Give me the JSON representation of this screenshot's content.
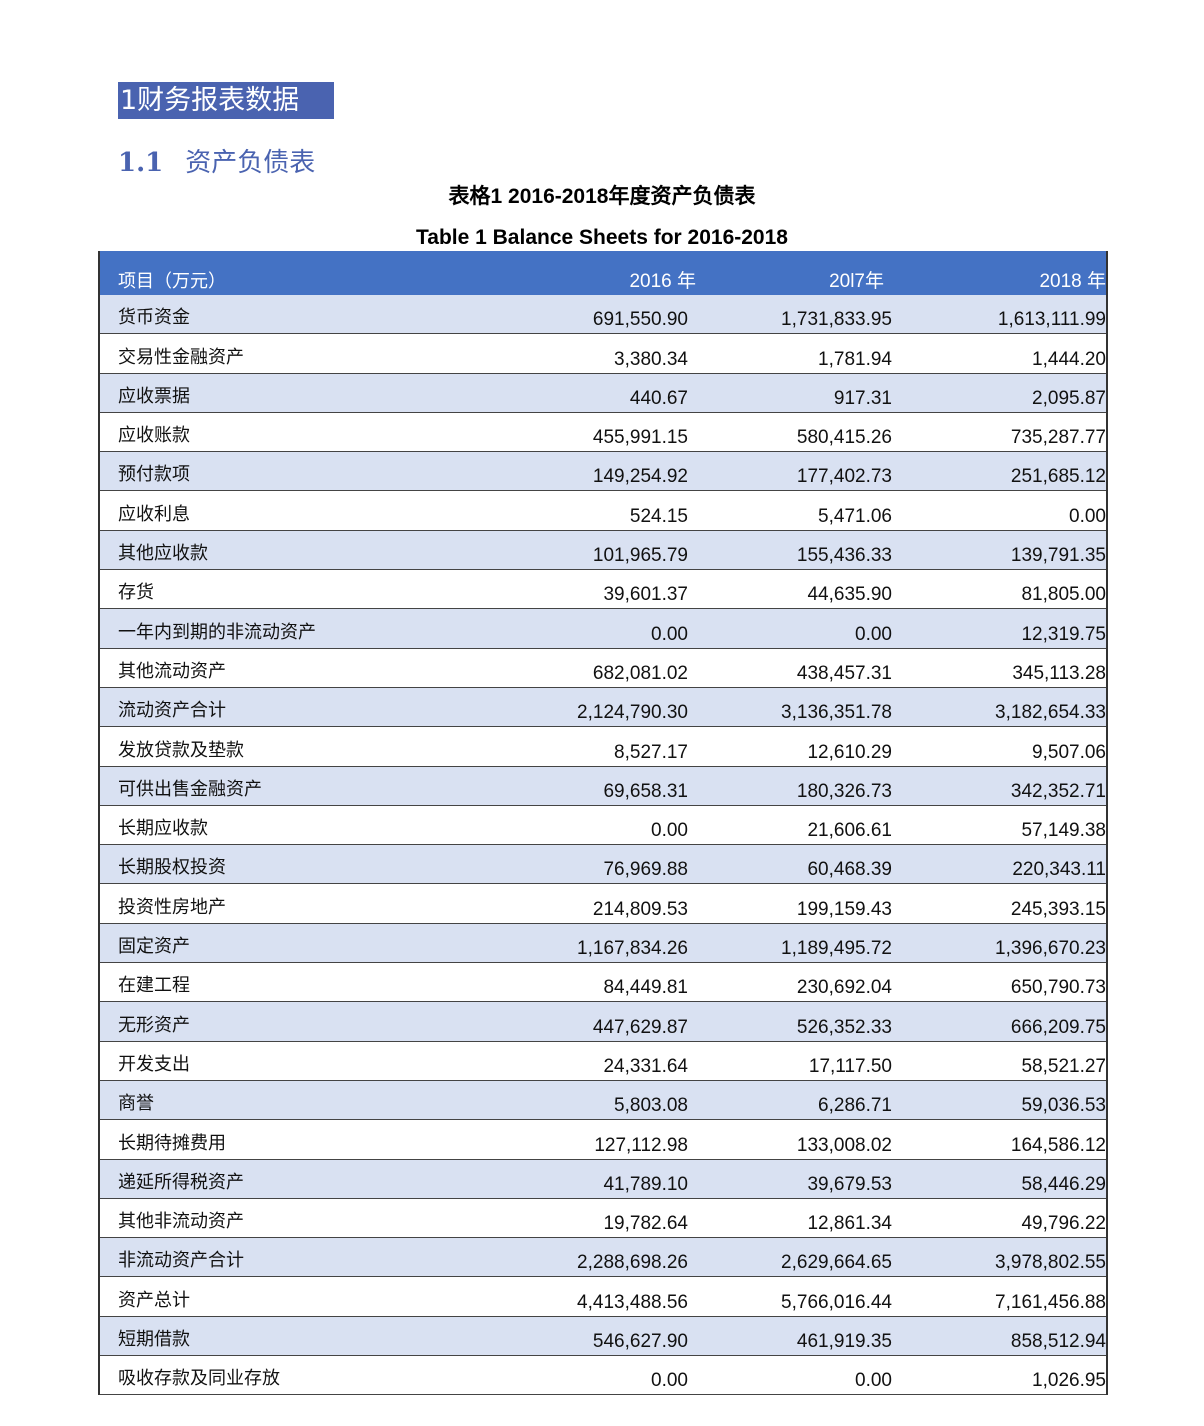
{
  "heading1": "1财务报表数据",
  "heading2": {
    "number": "1.1",
    "title": "资产负债表"
  },
  "caption_cn": "表格1 2016-2018年度资产负债表",
  "caption_en": "Table 1 Balance Sheets for 2016-2018",
  "colors": {
    "heading_bg": "#4a63b0",
    "header_bg": "#4472c4",
    "alt_row": "#d9e1f2"
  },
  "table": {
    "headers": [
      "项目（万元）",
      "2016 年",
      "20l7年",
      "2018 年"
    ],
    "rows": [
      [
        "货币资金",
        "691,550.90",
        "1,731,833.95",
        "1,613,111.99"
      ],
      [
        "交易性金融资产",
        "3,380.34",
        "1,781.94",
        "1,444.20"
      ],
      [
        "应收票据",
        "440.67",
        "917.31",
        "2,095.87"
      ],
      [
        "应收账款",
        "455,991.15",
        "580,415.26",
        "735,287.77"
      ],
      [
        "预付款项",
        "149,254.92",
        "177,402.73",
        "251,685.12"
      ],
      [
        "应收利息",
        "524.15",
        "5,471.06",
        "0.00"
      ],
      [
        "其他应收款",
        "101,965.79",
        "155,436.33",
        "139,791.35"
      ],
      [
        "存货",
        "39,601.37",
        "44,635.90",
        "81,805.00"
      ],
      [
        "一年内到期的非流动资产",
        "0.00",
        "0.00",
        "12,319.75"
      ],
      [
        "其他流动资产",
        "682,081.02",
        "438,457.31",
        "345,113.28"
      ],
      [
        "流动资产合计",
        "2,124,790.30",
        "3,136,351.78",
        "3,182,654.33"
      ],
      [
        "发放贷款及垫款",
        "8,527.17",
        "12,610.29",
        "9,507.06"
      ],
      [
        "可供出售金融资产",
        "69,658.31",
        "180,326.73",
        "342,352.71"
      ],
      [
        "长期应收款",
        "0.00",
        "21,606.61",
        "57,149.38"
      ],
      [
        "长期股权投资",
        "76,969.88",
        "60,468.39",
        "220,343.11"
      ],
      [
        "投资性房地产",
        "214,809.53",
        "199,159.43",
        "245,393.15"
      ],
      [
        "固定资产",
        "1,167,834.26",
        "1,189,495.72",
        "1,396,670.23"
      ],
      [
        "在建工程",
        "84,449.81",
        "230,692.04",
        "650,790.73"
      ],
      [
        "无形资产",
        "447,629.87",
        "526,352.33",
        "666,209.75"
      ],
      [
        "开发支出",
        "24,331.64",
        "17,117.50",
        "58,521.27"
      ],
      [
        "商誉",
        "5,803.08",
        "6,286.71",
        "59,036.53"
      ],
      [
        "长期待摊费用",
        "127,112.98",
        "133,008.02",
        "164,586.12"
      ],
      [
        "递延所得税资产",
        "41,789.10",
        "39,679.53",
        "58,446.29"
      ],
      [
        "其他非流动资产",
        "19,782.64",
        "12,861.34",
        "49,796.22"
      ],
      [
        "非流动资产合计",
        "2,288,698.26",
        "2,629,664.65",
        "3,978,802.55"
      ],
      [
        "资产总计",
        "4,413,488.56",
        "5,766,016.44",
        "7,161,456.88"
      ],
      [
        "短期借款",
        "546,627.90",
        "461,919.35",
        "858,512.94"
      ],
      [
        "吸收存款及同业存放",
        "0.00",
        "0.00",
        "1,026.95"
      ]
    ]
  }
}
